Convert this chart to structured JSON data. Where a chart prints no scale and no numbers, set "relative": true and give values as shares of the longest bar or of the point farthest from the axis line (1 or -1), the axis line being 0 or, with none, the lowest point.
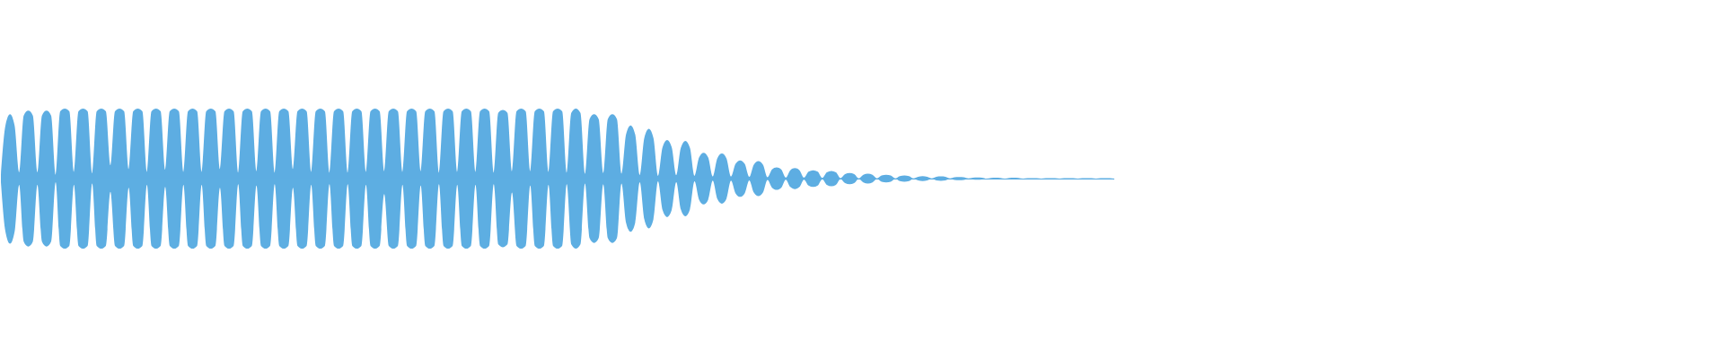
{
  "chart_data": {
    "type": "area",
    "relative": true,
    "categories": [
      null,
      null,
      null,
      null,
      null,
      null,
      null,
      null,
      null,
      null,
      null,
      null,
      null,
      null,
      null,
      null,
      null,
      null,
      null,
      null,
      null,
      null,
      null,
      null,
      null,
      null,
      null,
      null,
      null,
      null,
      null,
      null,
      null,
      null,
      null,
      null,
      null,
      null,
      null,
      null,
      null,
      null,
      null,
      null,
      null,
      null,
      null,
      null,
      null,
      null,
      null,
      null,
      null,
      null,
      null,
      null,
      null,
      null,
      null,
      null,
      null,
      null,
      null,
      null,
      null,
      null,
      null,
      null,
      null,
      null,
      null,
      null,
      null,
      null,
      null,
      null,
      null,
      null,
      null,
      null,
      null,
      null,
      null,
      null,
      null,
      null,
      null,
      null,
      null,
      null,
      null,
      null,
      null,
      null,
      null,
      null,
      null,
      null,
      null,
      null,
      null,
      null,
      null,
      null,
      null,
      null,
      null,
      null,
      null,
      null,
      null,
      null,
      null,
      null,
      null,
      null,
      null,
      null,
      null,
      null,
      null,
      null,
      null,
      null,
      null,
      null,
      null,
      null,
      null,
      null,
      null,
      null,
      null,
      null,
      null,
      null,
      null,
      null,
      null,
      null,
      null,
      null,
      null,
      null,
      null,
      null,
      null,
      null,
      null,
      null,
      null,
      null,
      null,
      null,
      null,
      null,
      null,
      null,
      null,
      null,
      null,
      null,
      null,
      null,
      null,
      null,
      null,
      null,
      null,
      null,
      null,
      null,
      null,
      null,
      null,
      null,
      null,
      null,
      null,
      null,
      null,
      null,
      null,
      null,
      null,
      null,
      null,
      null,
      null,
      null,
      null,
      null,
      null,
      null,
      null,
      null,
      null,
      null,
      null,
      null,
      null,
      null,
      null,
      null,
      null,
      null,
      null,
      null,
      null,
      null,
      null,
      null,
      null,
      null,
      null,
      null,
      null,
      null,
      null,
      null,
      null,
      null,
      null,
      null,
      null,
      null,
      null,
      null,
      null,
      null,
      null,
      null,
      null,
      null,
      null,
      null,
      null,
      null,
      null,
      null,
      null,
      null,
      null,
      null,
      null
    ],
    "series": [
      {
        "color": "#5dade2",
        "values": [
          0.05,
          0.76,
          0.92,
          0.76,
          0.09,
          0.9,
          0.97,
          0.9,
          0.09,
          0.9,
          0.97,
          0.9,
          0.05,
          0.96,
          1,
          0.96,
          0.09,
          0.96,
          1,
          0.96,
          0.07,
          0.96,
          1,
          0.96,
          0.19,
          0.96,
          1,
          0.96,
          0.13,
          0.96,
          1,
          0.96,
          0.09,
          0.96,
          1,
          0.96,
          0.12,
          0.96,
          1,
          0.96,
          0.09,
          0.96,
          1,
          0.96,
          0.09,
          0.96,
          1,
          0.96,
          0.13,
          0.96,
          1,
          0.96,
          0.08,
          0.96,
          1,
          0.96,
          0.1,
          0.96,
          1,
          0.96,
          0.08,
          0.96,
          1,
          0.96,
          0.13,
          0.96,
          1,
          0.96,
          0.09,
          0.96,
          1,
          0.96,
          0.08,
          0.96,
          1,
          0.96,
          0.08,
          0.96,
          1,
          0.96,
          0.09,
          0.96,
          1,
          0.96,
          0.1,
          0.96,
          1,
          0.96,
          0.09,
          0.96,
          1,
          0.96,
          0.1,
          0.96,
          1,
          0.96,
          0.08,
          0.96,
          1,
          0.96,
          0.09,
          0.96,
          1,
          0.96,
          0.09,
          0.96,
          1,
          0.96,
          0.08,
          0.94,
          0.98,
          0.94,
          0.1,
          0.96,
          1,
          0.96,
          0.1,
          0.96,
          1,
          0.96,
          0.09,
          0.96,
          1,
          0.96,
          0.08,
          0.94,
          1,
          0.94,
          0.07,
          0.85,
          0.92,
          0.85,
          0.08,
          0.85,
          0.92,
          0.85,
          0.07,
          0.63,
          0.76,
          0.63,
          0.05,
          0.58,
          0.71,
          0.58,
          0.04,
          0.45,
          0.55,
          0.45,
          0.05,
          0.44,
          0.54,
          0.44,
          0.04,
          0.3,
          0.37,
          0.3,
          0.03,
          0.29,
          0.36,
          0.29,
          0.03,
          0.21,
          0.26,
          0.21,
          0.025,
          0.2,
          0.25,
          0.2,
          0.02,
          0.13,
          0.16,
          0.13,
          0.015,
          0.12,
          0.15,
          0.12,
          0.015,
          0.1,
          0.12,
          0.1,
          0.01,
          0.09,
          0.11,
          0.09,
          0.008,
          0.065,
          0.08,
          0.065,
          0.004,
          0.055,
          0.07,
          0.055,
          0.004,
          0.045,
          0.055,
          0.045,
          0.004,
          0.036,
          0.045,
          0.036,
          0.004,
          0.027,
          0.034,
          0.027,
          0.004,
          0.026,
          0.032,
          0.026,
          0.004,
          0.019,
          0.024,
          0.019,
          0.004,
          0.014,
          0.017,
          0.014,
          0,
          0.01,
          0.013,
          0.01,
          0,
          0.01,
          0.012,
          0.01,
          0,
          0.007,
          0.007,
          0.007,
          0,
          0.007,
          0.007,
          0.007,
          0,
          0.007,
          0.007,
          0.007,
          0,
          0.007,
          0.007,
          0.007,
          0,
          0.007,
          0.007,
          0.007,
          0
        ]
      },
      {
        "color": "#5daee2",
        "values": [
          -0.05,
          -0.76,
          -0.93,
          -0.76,
          -0.09,
          -0.9,
          -0.97,
          -0.9,
          -0.09,
          -0.9,
          -0.97,
          -0.9,
          -0.05,
          -0.96,
          -1,
          -0.96,
          -0.09,
          -0.96,
          -1,
          -0.96,
          -0.07,
          -0.96,
          -1,
          -0.96,
          -0.19,
          -0.96,
          -1,
          -0.96,
          -0.13,
          -0.96,
          -1,
          -0.96,
          -0.09,
          -0.96,
          -1,
          -0.96,
          -0.12,
          -0.96,
          -1,
          -0.96,
          -0.09,
          -0.96,
          -1,
          -0.96,
          -0.09,
          -0.96,
          -1,
          -0.96,
          -0.13,
          -0.96,
          -1,
          -0.96,
          -0.08,
          -0.96,
          -1,
          -0.96,
          -0.1,
          -0.96,
          -1,
          -0.96,
          -0.08,
          -0.96,
          -1,
          -0.96,
          -0.13,
          -0.96,
          -1,
          -0.96,
          -0.09,
          -0.96,
          -1,
          -0.96,
          -0.08,
          -0.96,
          -1,
          -0.96,
          -0.08,
          -0.96,
          -1,
          -0.96,
          -0.09,
          -0.96,
          -1,
          -0.96,
          -0.22,
          -0.96,
          -1,
          -0.96,
          -0.09,
          -0.96,
          -1,
          -0.96,
          -0.1,
          -0.96,
          -1,
          -0.96,
          -0.08,
          -0.96,
          -1,
          -0.96,
          -0.09,
          -0.96,
          -1,
          -0.96,
          -0.09,
          -0.96,
          -1,
          -0.96,
          -0.08,
          -0.94,
          -0.98,
          -0.94,
          -0.2,
          -0.96,
          -1,
          -0.96,
          -0.1,
          -0.96,
          -1,
          -0.96,
          -0.09,
          -0.96,
          -1,
          -0.96,
          -0.08,
          -0.94,
          -1,
          -0.94,
          -0.07,
          -0.85,
          -0.92,
          -0.85,
          -0.08,
          -0.85,
          -0.92,
          -0.85,
          -0.07,
          -0.63,
          -0.76,
          -0.63,
          -0.05,
          -0.58,
          -0.71,
          -0.58,
          -0.04,
          -0.45,
          -0.55,
          -0.45,
          -0.05,
          -0.44,
          -0.54,
          -0.44,
          -0.04,
          -0.3,
          -0.37,
          -0.3,
          -0.03,
          -0.29,
          -0.36,
          -0.29,
          -0.03,
          -0.21,
          -0.26,
          -0.21,
          -0.025,
          -0.2,
          -0.25,
          -0.2,
          -0.02,
          -0.13,
          -0.16,
          -0.13,
          -0.015,
          -0.12,
          -0.15,
          -0.12,
          -0.015,
          -0.1,
          -0.12,
          -0.1,
          -0.01,
          -0.09,
          -0.11,
          -0.09,
          -0.008,
          -0.065,
          -0.08,
          -0.065,
          -0.004,
          -0.055,
          -0.07,
          -0.055,
          -0.004,
          -0.045,
          -0.055,
          -0.045,
          -0.004,
          -0.036,
          -0.045,
          -0.036,
          -0.004,
          -0.027,
          -0.034,
          -0.027,
          -0.004,
          -0.026,
          -0.032,
          -0.026,
          -0.004,
          -0.019,
          -0.024,
          -0.019,
          -0.004,
          -0.014,
          -0.017,
          -0.014,
          0,
          -0.01,
          -0.013,
          -0.01,
          0,
          -0.01,
          -0.012,
          -0.01,
          0,
          -0.007,
          -0.007,
          -0.007,
          0,
          -0.007,
          -0.007,
          -0.007,
          0,
          -0.007,
          -0.007,
          -0.007,
          0,
          -0.007,
          -0.007,
          -0.007,
          0,
          -0.007,
          -0.007,
          -0.007,
          0
        ]
      }
    ]
  }
}
